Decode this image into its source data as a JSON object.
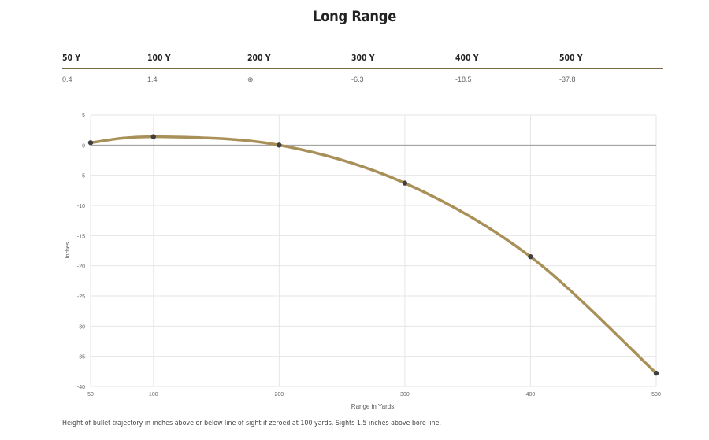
{
  "title": "Long Range",
  "table": {
    "headers": [
      "50 Y",
      "100 Y",
      "200 Y",
      "300 Y",
      "400 Y",
      "500 Y"
    ],
    "values": [
      "0.4",
      "1.4",
      "⊕",
      "-6.3",
      "-18.5",
      "-37.8"
    ]
  },
  "footnote": "Height of bullet trajectory in inches above or below line of sight if zeroed at 100 yards. Sights 1.5 inches above bore line.",
  "colors": {
    "line": "#a89058",
    "point": "#3f3f3f",
    "rule": "#7a6a45"
  },
  "chart_data": {
    "type": "line",
    "xlabel": "Range in Yards",
    "ylabel": "Inches",
    "x": [
      50,
      100,
      200,
      300,
      400,
      500
    ],
    "series": [
      {
        "values": [
          0.4,
          1.4,
          0,
          -6.3,
          -18.5,
          -37.8
        ]
      }
    ],
    "xticks": [
      50,
      100,
      200,
      300,
      400,
      500
    ],
    "yticks": [
      5,
      0,
      -5,
      -10,
      -15,
      -20,
      -25,
      -30,
      -35,
      -40
    ],
    "xlim": [
      50,
      500
    ],
    "ylim": [
      -40,
      5
    ],
    "grid": true,
    "legend": "none"
  }
}
